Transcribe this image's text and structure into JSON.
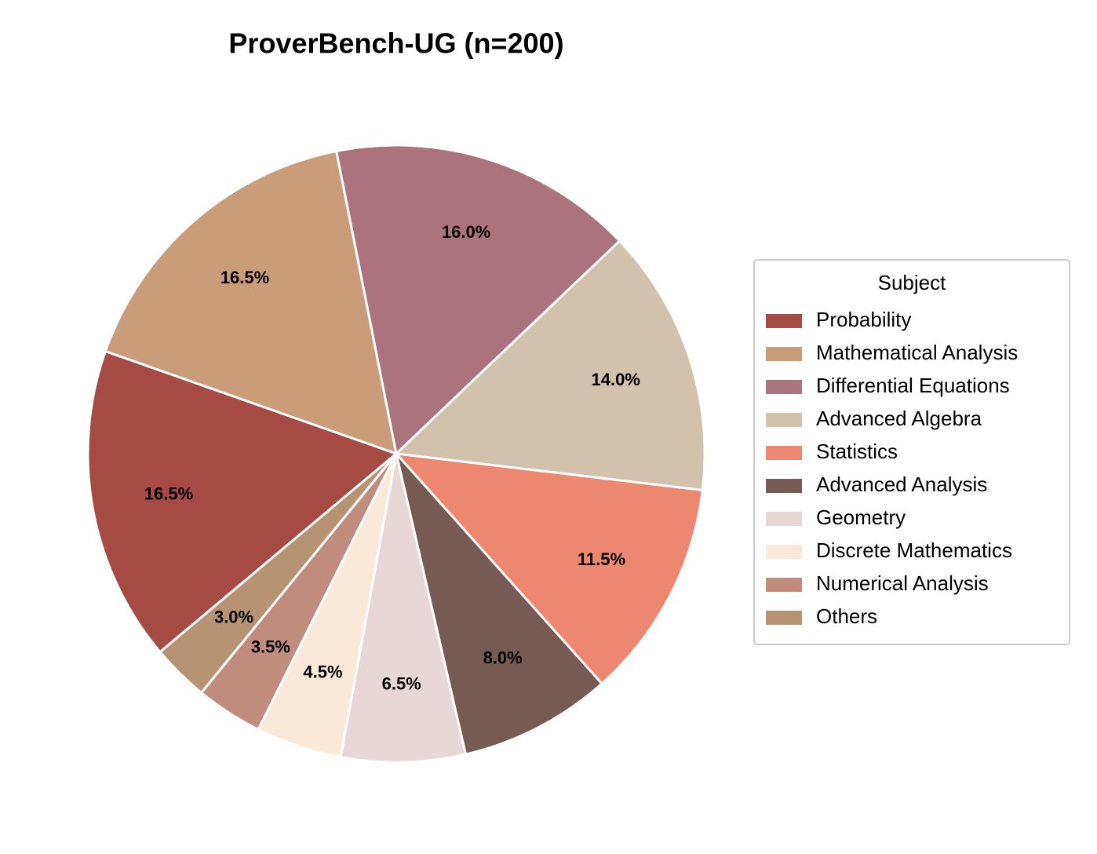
{
  "chart_data": {
    "type": "pie",
    "title": "ProverBench-UG  (n=200)",
    "categories": [
      "Probability",
      "Mathematical Analysis",
      "Differential Equations",
      "Advanced Algebra",
      "Statistics",
      "Advanced Analysis",
      "Geometry",
      "Discrete Mathematics",
      "Numerical Analysis",
      "Others"
    ],
    "values": [
      16.5,
      16.5,
      16.0,
      14.0,
      11.5,
      8.0,
      6.5,
      4.5,
      3.5,
      3.0
    ],
    "value_labels": [
      "16.5%",
      "16.5%",
      "16.0%",
      "14.0%",
      "11.5%",
      "8.0%",
      "6.5%",
      "4.5%",
      "3.5%",
      "3.0%"
    ],
    "colors": [
      "#a54b44",
      "#c99c7a",
      "#aa737e",
      "#d2c1ab",
      "#ee8770",
      "#775a53",
      "#e7d8d7",
      "#fbe9d7",
      "#c08c7b",
      "#b69372"
    ],
    "legend_title": "Subject",
    "legend": "right"
  }
}
